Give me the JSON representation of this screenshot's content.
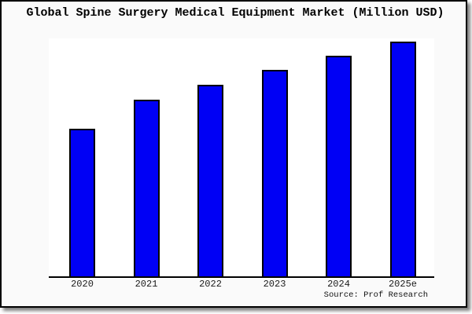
{
  "title": "Global Spine Surgery Medical Equipment Market (Million USD)",
  "source": "Source: Prof Research",
  "frame": {
    "background_color": "#fafafa",
    "plot_background_color": "#ffffff",
    "border_color": "#000000",
    "shadow_color": "#808080"
  },
  "chart_data": {
    "type": "bar",
    "title": "Global Spine Surgery Medical Equipment Market (Million USD)",
    "categories": [
      "2020",
      "2021",
      "2022",
      "2023",
      "2024",
      "2025e"
    ],
    "values": [
      188,
      225,
      244,
      263,
      281,
      299
    ],
    "value_note": "y-axis has no ticks, labels or gridlines; values are relative bar heights estimated in pixels from a zero baseline",
    "xlabel": "",
    "ylabel": "",
    "ylim": [
      0,
      303
    ],
    "grid": false,
    "legend_position": "none",
    "bar_color": "#0000F5",
    "bar_border_color": "#000000",
    "axis_line_color": "#000000",
    "source_label": "Source: Prof Research"
  }
}
